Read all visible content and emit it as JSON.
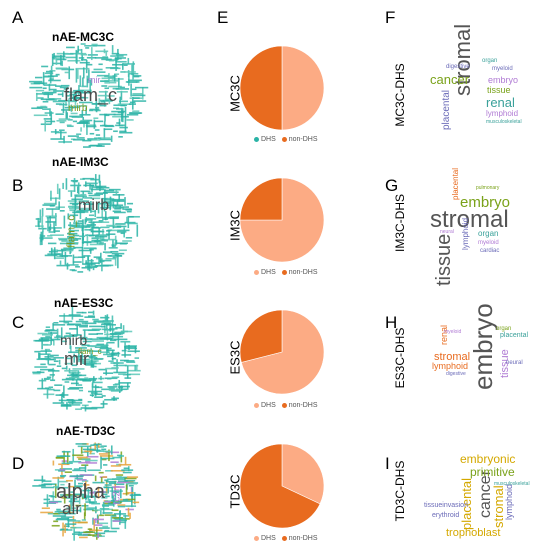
{
  "colors": {
    "dhs": "#fcab84",
    "non_dhs": "#e86b1f",
    "teal": "#2ab3a6"
  },
  "panels": {
    "letters": [
      "A",
      "B",
      "C",
      "D",
      "E",
      "F",
      "G",
      "H",
      "I"
    ]
  },
  "wordclouds_left": [
    {
      "title": "nAE-MC3C",
      "words": [
        "flam_c",
        "mirb",
        "mir"
      ]
    },
    {
      "title": "nAE-IM3C",
      "words": [
        "mirb",
        "flam_c"
      ]
    },
    {
      "title": "nAE-ES3C",
      "words": [
        "mir",
        "mirb",
        "flam_c"
      ]
    },
    {
      "title": "nAE-TD3C",
      "words": [
        "alpha",
        "alr",
        "tc2n"
      ]
    }
  ],
  "chart_data": [
    {
      "type": "pie",
      "label": "MC3C",
      "categories": [
        "DHS",
        "non-DHS"
      ],
      "values": [
        50,
        50
      ]
    },
    {
      "type": "pie",
      "label": "IM3C",
      "categories": [
        "DHS",
        "non-DHS"
      ],
      "values": [
        75,
        25
      ]
    },
    {
      "type": "pie",
      "label": "ES3C",
      "categories": [
        "DHS",
        "non-DHS"
      ],
      "values": [
        71,
        29
      ]
    },
    {
      "type": "pie",
      "label": "TD3C",
      "categories": [
        "DHS",
        "non-DHS"
      ],
      "values": [
        32,
        68
      ]
    }
  ],
  "wordclouds_right": [
    {
      "label": "MC3C-DHS",
      "words": [
        "stromal",
        "cancer",
        "renal",
        "placental",
        "tissue",
        "embryo",
        "lymphoid",
        "organ",
        "myeloid",
        "digestive",
        "musculoskeletal"
      ]
    },
    {
      "label": "IM3C-DHS",
      "words": [
        "stromal",
        "tissue",
        "embryo",
        "placental",
        "lymphoid",
        "organ",
        "myeloid",
        "cardiac",
        "pulmonary",
        "neural"
      ]
    },
    {
      "label": "ES3C-DHS",
      "words": [
        "embryo",
        "stromal",
        "tissue",
        "lymphoid",
        "renal",
        "placental",
        "organ",
        "neural",
        "myeloid",
        "digestive"
      ]
    },
    {
      "label": "TD3C-DHS",
      "words": [
        "cancer",
        "embryonic",
        "primitive",
        "placental",
        "stromal",
        "trophoblast",
        "lymphoid",
        "tissueinvasion",
        "erythroid",
        "musculoskeletal"
      ]
    }
  ]
}
